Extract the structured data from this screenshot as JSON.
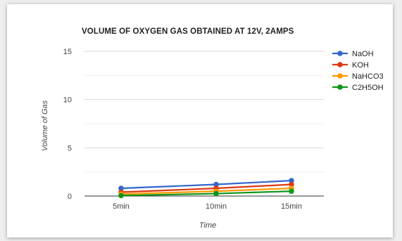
{
  "chart_data": {
    "type": "line",
    "title": "VOLUME OF OXYGEN GAS OBTAINED AT 12V, 2AMPS",
    "xlabel": "Time",
    "ylabel": "Volume of Gas",
    "categories": [
      "5min",
      "10min",
      "15min"
    ],
    "ylim": [
      0,
      15
    ],
    "yticks": [
      0,
      5,
      10,
      15
    ],
    "grid": true,
    "legend_position": "right",
    "series": [
      {
        "name": "NaOH",
        "color": "#3366cc",
        "values": [
          0.8,
          1.2,
          1.6
        ]
      },
      {
        "name": "KOH",
        "color": "#dc3912",
        "values": [
          0.4,
          0.8,
          1.2
        ]
      },
      {
        "name": "NaHCO3",
        "color": "#ff9900",
        "values": [
          0.2,
          0.5,
          0.8
        ]
      },
      {
        "name": "C2H5OH",
        "color": "#109618",
        "values": [
          0.05,
          0.25,
          0.5
        ]
      }
    ]
  }
}
